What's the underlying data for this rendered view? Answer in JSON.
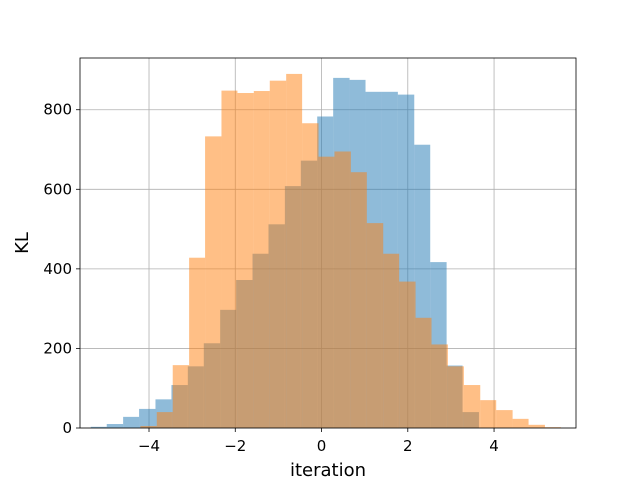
{
  "chart_data": {
    "type": "bar",
    "title": "",
    "xlabel": "iteration",
    "ylabel": "KL",
    "xlim": [
      -5.6,
      5.9
    ],
    "ylim": [
      0,
      930
    ],
    "xticks": [
      -4,
      -2,
      0,
      2,
      4
    ],
    "xtick_labels": [
      "−4",
      "−2",
      "0",
      "2",
      "4"
    ],
    "yticks": [
      0,
      200,
      400,
      600,
      800
    ],
    "ytick_labels": [
      "0",
      "200",
      "400",
      "600",
      "800"
    ],
    "grid": true,
    "series": [
      {
        "color": "#1f77b4",
        "opacity": 0.5,
        "bins": [
          {
            "x0": -5.35,
            "x1": -4.98,
            "value": 3
          },
          {
            "x0": -4.98,
            "x1": -4.6,
            "value": 10
          },
          {
            "x0": -4.6,
            "x1": -4.23,
            "value": 28
          },
          {
            "x0": -4.23,
            "x1": -3.85,
            "value": 48
          },
          {
            "x0": -3.85,
            "x1": -3.48,
            "value": 72
          },
          {
            "x0": -3.48,
            "x1": -3.1,
            "value": 108
          },
          {
            "x0": -3.1,
            "x1": -2.73,
            "value": 155
          },
          {
            "x0": -2.73,
            "x1": -2.35,
            "value": 213
          },
          {
            "x0": -2.35,
            "x1": -1.98,
            "value": 297
          },
          {
            "x0": -1.98,
            "x1": -1.6,
            "value": 372
          },
          {
            "x0": -1.6,
            "x1": -1.23,
            "value": 438
          },
          {
            "x0": -1.23,
            "x1": -0.85,
            "value": 512
          },
          {
            "x0": -0.85,
            "x1": -0.48,
            "value": 608
          },
          {
            "x0": -0.48,
            "x1": -0.1,
            "value": 672
          },
          {
            "x0": -0.1,
            "x1": 0.27,
            "value": 783
          },
          {
            "x0": 0.27,
            "x1": 0.65,
            "value": 880
          },
          {
            "x0": 0.65,
            "x1": 1.02,
            "value": 875
          },
          {
            "x0": 1.02,
            "x1": 1.4,
            "value": 845
          },
          {
            "x0": 1.4,
            "x1": 1.77,
            "value": 845
          },
          {
            "x0": 1.77,
            "x1": 2.15,
            "value": 838
          },
          {
            "x0": 2.15,
            "x1": 2.52,
            "value": 712
          },
          {
            "x0": 2.52,
            "x1": 2.9,
            "value": 417
          },
          {
            "x0": 2.9,
            "x1": 3.27,
            "value": 157
          },
          {
            "x0": 3.27,
            "x1": 3.65,
            "value": 40
          }
        ]
      },
      {
        "color": "#ff7f0e",
        "opacity": 0.5,
        "bins": [
          {
            "x0": -4.2,
            "x1": -3.82,
            "value": 5
          },
          {
            "x0": -3.82,
            "x1": -3.45,
            "value": 40
          },
          {
            "x0": -3.45,
            "x1": -3.07,
            "value": 158
          },
          {
            "x0": -3.07,
            "x1": -2.7,
            "value": 428
          },
          {
            "x0": -2.7,
            "x1": -2.32,
            "value": 733
          },
          {
            "x0": -2.32,
            "x1": -1.95,
            "value": 848
          },
          {
            "x0": -1.95,
            "x1": -1.57,
            "value": 842
          },
          {
            "x0": -1.57,
            "x1": -1.2,
            "value": 847
          },
          {
            "x0": -1.2,
            "x1": -0.82,
            "value": 873
          },
          {
            "x0": -0.82,
            "x1": -0.45,
            "value": 890
          },
          {
            "x0": -0.45,
            "x1": -0.07,
            "value": 766
          },
          {
            "x0": -0.07,
            "x1": 0.3,
            "value": 682
          },
          {
            "x0": 0.3,
            "x1": 0.68,
            "value": 695
          },
          {
            "x0": 0.68,
            "x1": 1.05,
            "value": 643
          },
          {
            "x0": 1.05,
            "x1": 1.43,
            "value": 515
          },
          {
            "x0": 1.43,
            "x1": 1.8,
            "value": 438
          },
          {
            "x0": 1.8,
            "x1": 2.18,
            "value": 368
          },
          {
            "x0": 2.18,
            "x1": 2.55,
            "value": 277
          },
          {
            "x0": 2.55,
            "x1": 2.93,
            "value": 210
          },
          {
            "x0": 2.93,
            "x1": 3.3,
            "value": 155
          },
          {
            "x0": 3.3,
            "x1": 3.68,
            "value": 108
          },
          {
            "x0": 3.68,
            "x1": 4.05,
            "value": 70
          },
          {
            "x0": 4.05,
            "x1": 4.43,
            "value": 45
          },
          {
            "x0": 4.43,
            "x1": 4.8,
            "value": 23
          },
          {
            "x0": 4.8,
            "x1": 5.18,
            "value": 8
          },
          {
            "x0": 5.18,
            "x1": 5.55,
            "value": 2
          }
        ]
      }
    ]
  }
}
